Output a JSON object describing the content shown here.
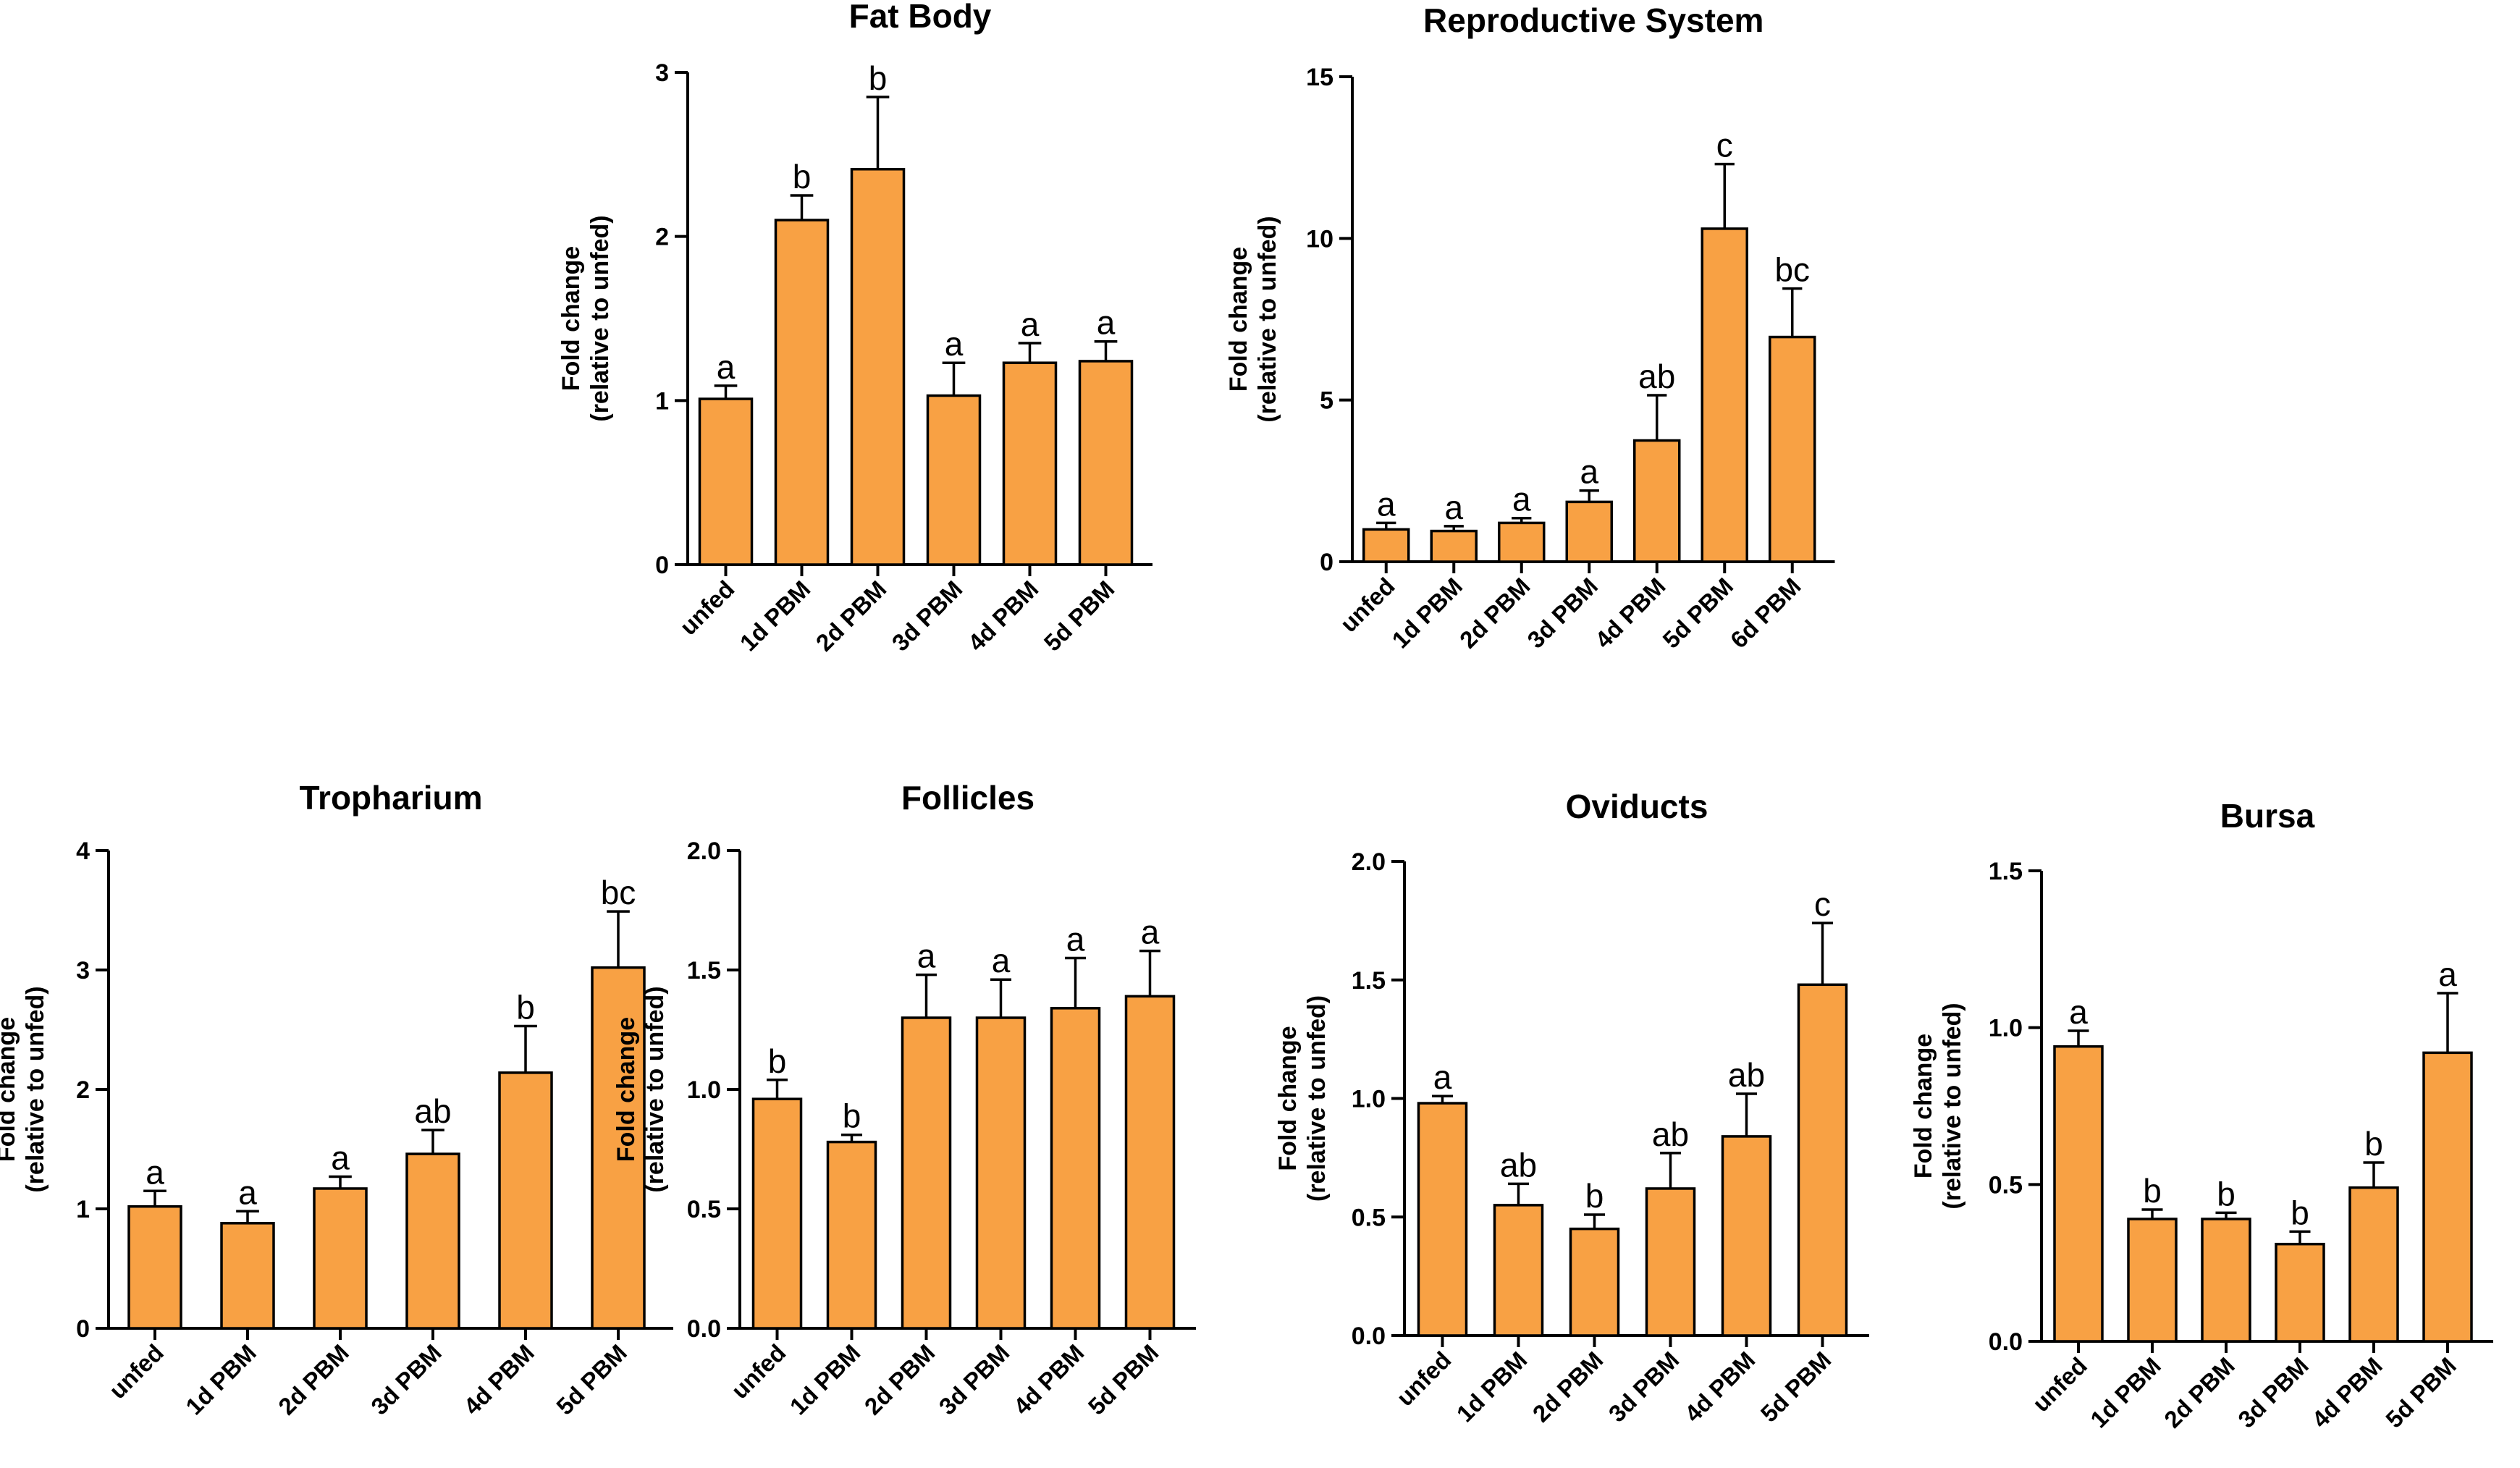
{
  "style": {
    "bar_color": "#F8A144",
    "line_color": "#000000"
  },
  "chart_data": [
    {
      "id": "fat-body",
      "type": "bar",
      "title": "Fat Body",
      "ylabel_line1": "Fold change",
      "ylabel_line2": "(relative to unfed)",
      "ylim": [
        0,
        3
      ],
      "ticks": [
        0,
        1,
        2,
        3
      ],
      "tick_labels": [
        "0",
        "1",
        "2",
        "3"
      ],
      "categories": [
        "unfed",
        "1d PBM",
        "2d PBM",
        "3d PBM",
        "4d PBM",
        "5d PBM"
      ],
      "values": [
        1.01,
        2.1,
        2.41,
        1.03,
        1.23,
        1.24
      ],
      "errors": [
        0.08,
        0.15,
        0.44,
        0.2,
        0.12,
        0.12
      ],
      "letters": [
        "a",
        "b",
        "b",
        "a",
        "a",
        "a"
      ]
    },
    {
      "id": "reproductive-system",
      "type": "bar",
      "title": "Reproductive System",
      "ylabel_line1": "Fold change",
      "ylabel_line2": "(relative to unfed)",
      "ylim": [
        0,
        15
      ],
      "ticks": [
        0,
        5,
        10,
        15
      ],
      "tick_labels": [
        "0",
        "5",
        "10",
        "15"
      ],
      "categories": [
        "unfed",
        "1d PBM",
        "2d PBM",
        "3d PBM",
        "4d PBM",
        "5d PBM",
        "6d PBM"
      ],
      "values": [
        1.0,
        0.95,
        1.2,
        1.85,
        3.75,
        10.3,
        6.95
      ],
      "errors": [
        0.2,
        0.15,
        0.15,
        0.35,
        1.4,
        2.0,
        1.5
      ],
      "letters": [
        "a",
        "a",
        "a",
        "a",
        "ab",
        "c",
        "bc"
      ]
    },
    {
      "id": "tropharium",
      "type": "bar",
      "title": "Tropharium",
      "ylabel_line1": "Fold change",
      "ylabel_line2": "(relative to unfed)",
      "ylim": [
        0,
        4
      ],
      "ticks": [
        0,
        1,
        2,
        3,
        4
      ],
      "tick_labels": [
        "0",
        "1",
        "2",
        "3",
        "4"
      ],
      "categories": [
        "unfed",
        "1d PBM",
        "2d PBM",
        "3d PBM",
        "4d PBM",
        "5d PBM"
      ],
      "values": [
        1.02,
        0.88,
        1.17,
        1.46,
        2.14,
        3.02
      ],
      "errors": [
        0.13,
        0.1,
        0.1,
        0.2,
        0.39,
        0.47
      ],
      "letters": [
        "a",
        "a",
        "a",
        "ab",
        "b",
        "bc"
      ]
    },
    {
      "id": "follicles",
      "type": "bar",
      "title": "Follicles",
      "ylabel_line1": "Fold change",
      "ylabel_line2": "(relative to unfed)",
      "ylim": [
        0,
        2
      ],
      "ticks": [
        0,
        0.5,
        1,
        1.5,
        2
      ],
      "tick_labels": [
        "0.0",
        "0.5",
        "1.0",
        "1.5",
        "2.0"
      ],
      "categories": [
        "unfed",
        "1d PBM",
        "2d PBM",
        "3d PBM",
        "4d PBM",
        "5d PBM"
      ],
      "values": [
        0.96,
        0.78,
        1.3,
        1.3,
        1.34,
        1.39
      ],
      "errors": [
        0.08,
        0.03,
        0.18,
        0.16,
        0.21,
        0.19
      ],
      "letters": [
        "b",
        "b",
        "a",
        "a",
        "a",
        "a"
      ]
    },
    {
      "id": "oviducts",
      "type": "bar",
      "title": "Oviducts",
      "ylabel_line1": "Fold change",
      "ylabel_line2": "(relative to unfed)",
      "ylim": [
        0,
        2
      ],
      "ticks": [
        0,
        0.5,
        1,
        1.5,
        2
      ],
      "tick_labels": [
        "0.0",
        "0.5",
        "1.0",
        "1.5",
        "2.0"
      ],
      "categories": [
        "unfed",
        "1d PBM",
        "2d PBM",
        "3d PBM",
        "4d PBM",
        "5d PBM"
      ],
      "values": [
        0.98,
        0.55,
        0.45,
        0.62,
        0.84,
        1.48
      ],
      "errors": [
        0.03,
        0.09,
        0.06,
        0.15,
        0.18,
        0.26
      ],
      "letters": [
        "a",
        "ab",
        "b",
        "ab",
        "ab",
        "c"
      ]
    },
    {
      "id": "bursa",
      "type": "bar",
      "title": "Bursa",
      "ylabel_line1": "Fold change",
      "ylabel_line2": "(relative to unfed)",
      "ylim": [
        0,
        1.5
      ],
      "ticks": [
        0,
        0.5,
        1,
        1.5
      ],
      "tick_labels": [
        "0.0",
        "0.5",
        "1.0",
        "1.5"
      ],
      "categories": [
        "unfed",
        "1d PBM",
        "2d PBM",
        "3d PBM",
        "4d PBM",
        "5d PBM"
      ],
      "values": [
        0.94,
        0.39,
        0.39,
        0.31,
        0.49,
        0.92
      ],
      "errors": [
        0.05,
        0.03,
        0.02,
        0.04,
        0.08,
        0.19
      ],
      "letters": [
        "a",
        "b",
        "b",
        "b",
        "b",
        "a"
      ]
    }
  ]
}
